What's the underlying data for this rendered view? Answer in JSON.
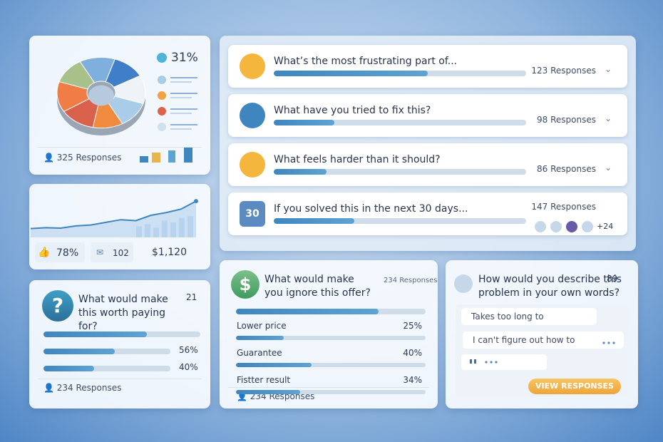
{
  "overview_card": {
    "highlight": "31%",
    "pie": {
      "values": [
        13,
        12,
        13,
        12,
        11,
        13,
        14,
        12
      ],
      "colors": [
        "#7fb0dd",
        "#3f7fc8",
        "#eef3f8",
        "#a9cde8",
        "#f08a3e",
        "#d9604a",
        "#ef7d45",
        "#a8c08a"
      ]
    },
    "responses": "325 Responses"
  },
  "trend_card": {
    "line": {
      "values": [
        20,
        22,
        21,
        26,
        28,
        34,
        40,
        38,
        50,
        56,
        64,
        82
      ],
      "ylim": [
        0,
        100
      ]
    },
    "bars": {
      "values": [
        25,
        30,
        22,
        38,
        34,
        44,
        48
      ]
    },
    "stats": [
      "78%",
      "102",
      "$1,120"
    ]
  },
  "worth_card": {
    "question": "What would make this worth paying for?",
    "badge": "21",
    "bars": [
      {
        "value": 66
      },
      {
        "value": 56,
        "value_label": "56%"
      },
      {
        "value": 40,
        "value_label": "40%"
      }
    ],
    "responses": "234 Responses"
  },
  "questions": [
    {
      "title": "What’s the most frustrating part of...",
      "progress": 61,
      "responses": "123 Responses"
    },
    {
      "title": "What have you tried to fix this?",
      "progress": 24,
      "responses": "98 Responses"
    },
    {
      "title": "What feels harder than it should?",
      "progress": 21,
      "responses": "86 Responses"
    },
    {
      "title": "If you solved this in the next 30 days...",
      "icon_label": "30",
      "progress": 32,
      "responses": "147 Responses",
      "extra": "+24"
    }
  ],
  "offer_card": {
    "question": "What would make you ignore this offer?",
    "header_count": "234 Responses",
    "top_bar": 75,
    "options": [
      {
        "label": "Lower price",
        "value": 25,
        "value_label": "25%"
      },
      {
        "label": "Guarantee",
        "value": 40,
        "value_label": "40%"
      },
      {
        "label": "Fistter result",
        "value": 34,
        "value_label": "34%"
      }
    ],
    "responses": "234 Responses"
  },
  "describe_card": {
    "question": "How would you describe this problem in your own words?",
    "badge": "89",
    "answers": [
      "Takes too long to",
      "I can't figure out how to"
    ],
    "button": "VIEW RESPONSES"
  }
}
